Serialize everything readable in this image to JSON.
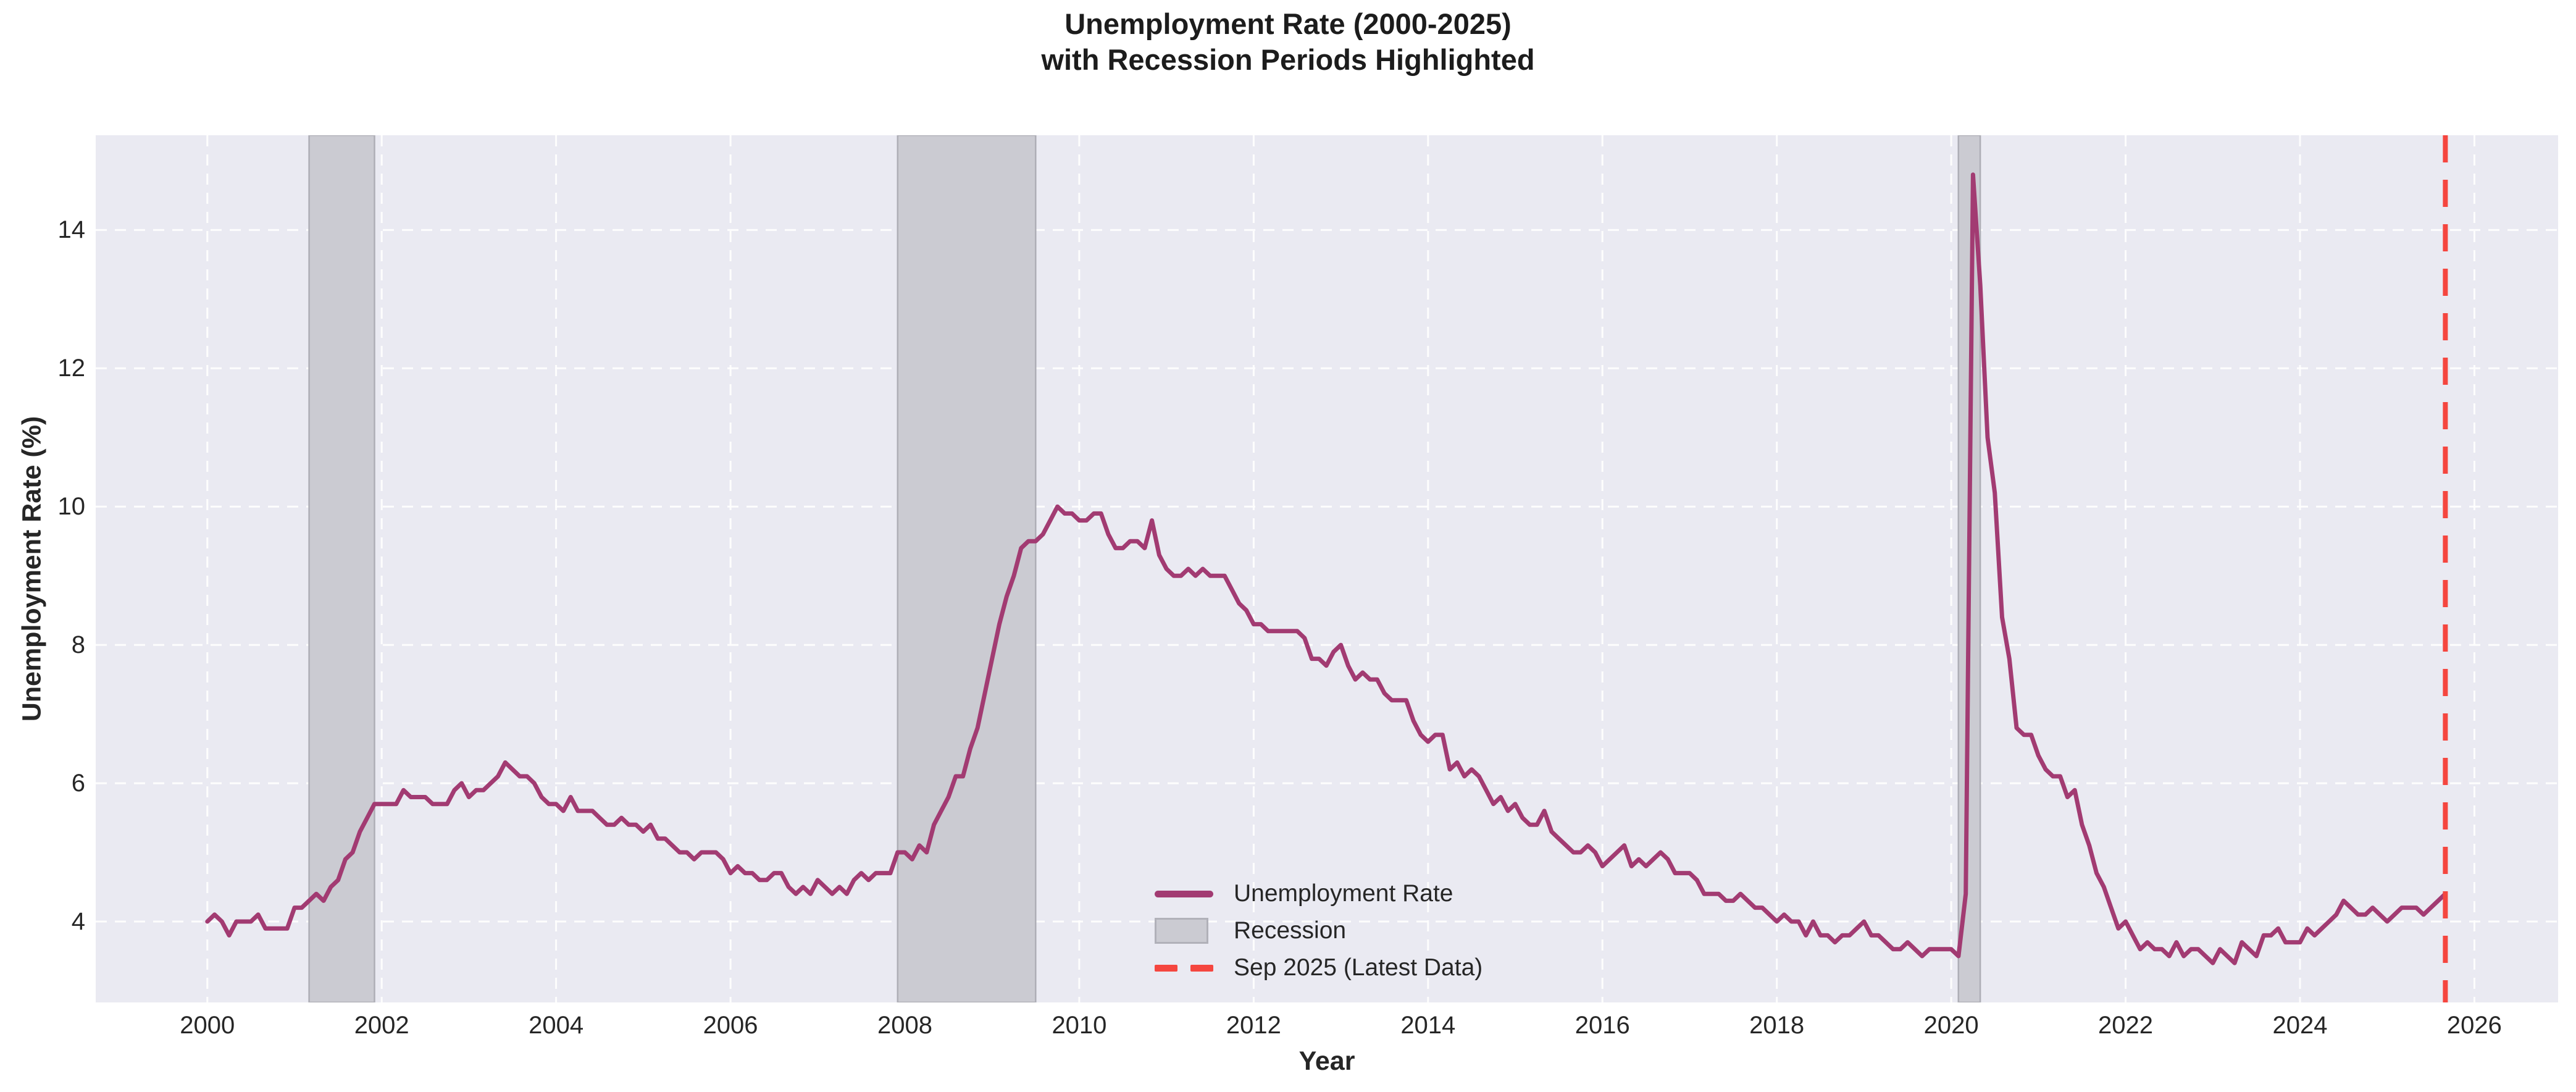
{
  "title": {
    "line1": "Unemployment Rate (2000-2025)",
    "line2": "with Recession Periods Highlighted"
  },
  "axes": {
    "x_label": "Year",
    "y_label": "Unemployment Rate (%)",
    "x_ticks": [
      2000,
      2002,
      2004,
      2006,
      2008,
      2010,
      2012,
      2014,
      2016,
      2018,
      2020,
      2022,
      2024,
      2026
    ],
    "y_ticks": [
      4,
      6,
      8,
      10,
      12,
      14
    ]
  },
  "legend": {
    "items": [
      {
        "label": "Unemployment Rate",
        "type": "line"
      },
      {
        "label": "Recession",
        "type": "patch"
      },
      {
        "label": "Sep 2025 (Latest Data)",
        "type": "dashed"
      }
    ]
  },
  "colors": {
    "line": "#A23B72",
    "recession_fill": "#CBCBD2",
    "recession_edge": "#AEAEB6",
    "marker_line": "#F5463F",
    "plot_bg": "#EAEAF2",
    "grid": "#FFFFFF",
    "text": "#262626"
  },
  "chart_data": {
    "type": "line",
    "title": "Unemployment Rate (2000-2025) with Recession Periods Highlighted",
    "xlabel": "Year",
    "ylabel": "Unemployment Rate (%)",
    "grid": "white dashed on light-gray background, legend lower center-left, no axis spines",
    "x_start_year": 2000,
    "frequency": "monthly",
    "x_end": "2025-09",
    "xlim": [
      1998.72,
      2026.96
    ],
    "ylim": [
      2.83,
      15.37
    ],
    "series": [
      {
        "name": "Unemployment Rate",
        "values": [
          4.0,
          4.1,
          4.0,
          3.8,
          4.0,
          4.0,
          4.0,
          4.1,
          3.9,
          3.9,
          3.9,
          3.9,
          4.2,
          4.2,
          4.3,
          4.4,
          4.3,
          4.5,
          4.6,
          4.9,
          5.0,
          5.3,
          5.5,
          5.7,
          5.7,
          5.7,
          5.7,
          5.9,
          5.8,
          5.8,
          5.8,
          5.7,
          5.7,
          5.7,
          5.9,
          6.0,
          5.8,
          5.9,
          5.9,
          6.0,
          6.1,
          6.3,
          6.2,
          6.1,
          6.1,
          6.0,
          5.8,
          5.7,
          5.7,
          5.6,
          5.8,
          5.6,
          5.6,
          5.6,
          5.5,
          5.4,
          5.4,
          5.5,
          5.4,
          5.4,
          5.3,
          5.4,
          5.2,
          5.2,
          5.1,
          5.0,
          5.0,
          4.9,
          5.0,
          5.0,
          5.0,
          4.9,
          4.7,
          4.8,
          4.7,
          4.7,
          4.6,
          4.6,
          4.7,
          4.7,
          4.5,
          4.4,
          4.5,
          4.4,
          4.6,
          4.5,
          4.4,
          4.5,
          4.4,
          4.6,
          4.7,
          4.6,
          4.7,
          4.7,
          4.7,
          5.0,
          5.0,
          4.9,
          5.1,
          5.0,
          5.4,
          5.6,
          5.8,
          6.1,
          6.1,
          6.5,
          6.8,
          7.3,
          7.8,
          8.3,
          8.7,
          9.0,
          9.4,
          9.5,
          9.5,
          9.6,
          9.8,
          10.0,
          9.9,
          9.9,
          9.8,
          9.8,
          9.9,
          9.9,
          9.6,
          9.4,
          9.4,
          9.5,
          9.5,
          9.4,
          9.8,
          9.3,
          9.1,
          9.0,
          9.0,
          9.1,
          9.0,
          9.1,
          9.0,
          9.0,
          9.0,
          8.8,
          8.6,
          8.5,
          8.3,
          8.3,
          8.2,
          8.2,
          8.2,
          8.2,
          8.2,
          8.1,
          7.8,
          7.8,
          7.7,
          7.9,
          8.0,
          7.7,
          7.5,
          7.6,
          7.5,
          7.5,
          7.3,
          7.2,
          7.2,
          7.2,
          6.9,
          6.7,
          6.6,
          6.7,
          6.7,
          6.2,
          6.3,
          6.1,
          6.2,
          6.1,
          5.9,
          5.7,
          5.8,
          5.6,
          5.7,
          5.5,
          5.4,
          5.4,
          5.6,
          5.3,
          5.2,
          5.1,
          5.0,
          5.0,
          5.1,
          5.0,
          4.8,
          4.9,
          5.0,
          5.1,
          4.8,
          4.9,
          4.8,
          4.9,
          5.0,
          4.9,
          4.7,
          4.7,
          4.7,
          4.6,
          4.4,
          4.4,
          4.4,
          4.3,
          4.3,
          4.4,
          4.3,
          4.2,
          4.2,
          4.1,
          4.0,
          4.1,
          4.0,
          4.0,
          3.8,
          4.0,
          3.8,
          3.8,
          3.7,
          3.8,
          3.8,
          3.9,
          4.0,
          3.8,
          3.8,
          3.7,
          3.6,
          3.6,
          3.7,
          3.6,
          3.5,
          3.6,
          3.6,
          3.6,
          3.6,
          3.5,
          4.4,
          14.8,
          13.2,
          11.0,
          10.2,
          8.4,
          7.8,
          6.8,
          6.7,
          6.7,
          6.4,
          6.2,
          6.1,
          6.1,
          5.8,
          5.9,
          5.4,
          5.1,
          4.7,
          4.5,
          4.2,
          3.9,
          4.0,
          3.8,
          3.6,
          3.7,
          3.6,
          3.6,
          3.5,
          3.7,
          3.5,
          3.6,
          3.6,
          3.5,
          3.4,
          3.6,
          3.5,
          3.4,
          3.7,
          3.6,
          3.5,
          3.8,
          3.8,
          3.9,
          3.7,
          3.7,
          3.7,
          3.9,
          3.8,
          3.9,
          4.0,
          4.1,
          4.3,
          4.2,
          4.1,
          4.1,
          4.2,
          4.1,
          4.0,
          4.1,
          4.2,
          4.2,
          4.2,
          4.1,
          4.2,
          4.3,
          4.4
        ]
      }
    ],
    "recession_bands": [
      {
        "label": "2001 recession",
        "x0": 2001.167,
        "x1": 2001.917
      },
      {
        "label": "2007-2009 recession",
        "x0": 2007.917,
        "x1": 2009.5
      },
      {
        "label": "2020 recession",
        "x0": 2020.083,
        "x1": 2020.333
      }
    ],
    "marker_line": {
      "x": 2025.667,
      "label": "Sep 2025 (Latest Data)",
      "style": "dashed-vertical"
    },
    "legend_entries": [
      "Unemployment Rate",
      "Recession",
      "Sep 2025 (Latest Data)"
    ]
  }
}
